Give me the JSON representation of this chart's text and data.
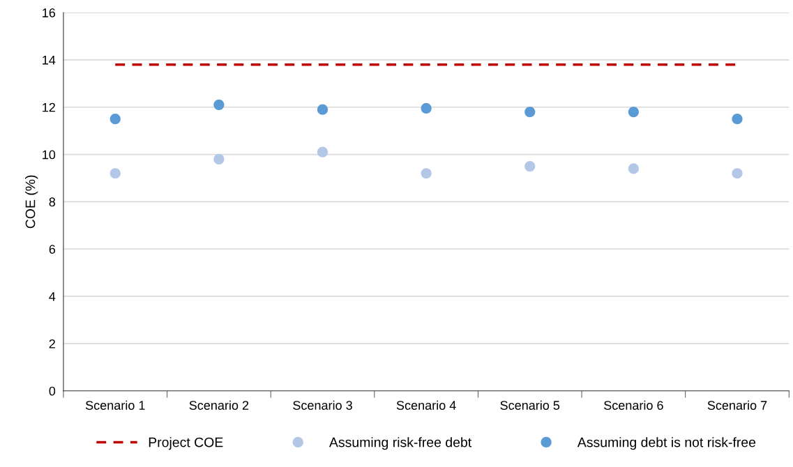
{
  "chart_data": {
    "type": "scatter",
    "ylabel": "COE (%)",
    "categories": [
      "Scenario 1",
      "Scenario 2",
      "Scenario 3",
      "Scenario 4",
      "Scenario 5",
      "Scenario 6",
      "Scenario 7"
    ],
    "series": [
      {
        "name": "Project COE",
        "type": "line",
        "color": "#c00000",
        "line_style": "dashed",
        "marker": "none",
        "values": [
          13.8,
          13.8,
          13.8,
          13.8,
          13.8,
          13.8,
          13.8
        ]
      },
      {
        "name": "Assuming risk-free debt",
        "color": "#b4c7e7",
        "marker": "circle",
        "values": [
          9.2,
          9.8,
          10.1,
          9.2,
          9.5,
          9.4,
          9.2
        ]
      },
      {
        "name": "Assuming debt is not risk-free",
        "color": "#5b9bd5",
        "marker": "circle",
        "values": [
          11.5,
          12.1,
          11.9,
          11.95,
          11.8,
          11.8,
          11.5
        ]
      }
    ],
    "ylim": [
      0,
      16
    ],
    "yticks": [
      0,
      2,
      4,
      6,
      8,
      10,
      12,
      14,
      16
    ],
    "grid": "y",
    "legend": "bottom"
  }
}
